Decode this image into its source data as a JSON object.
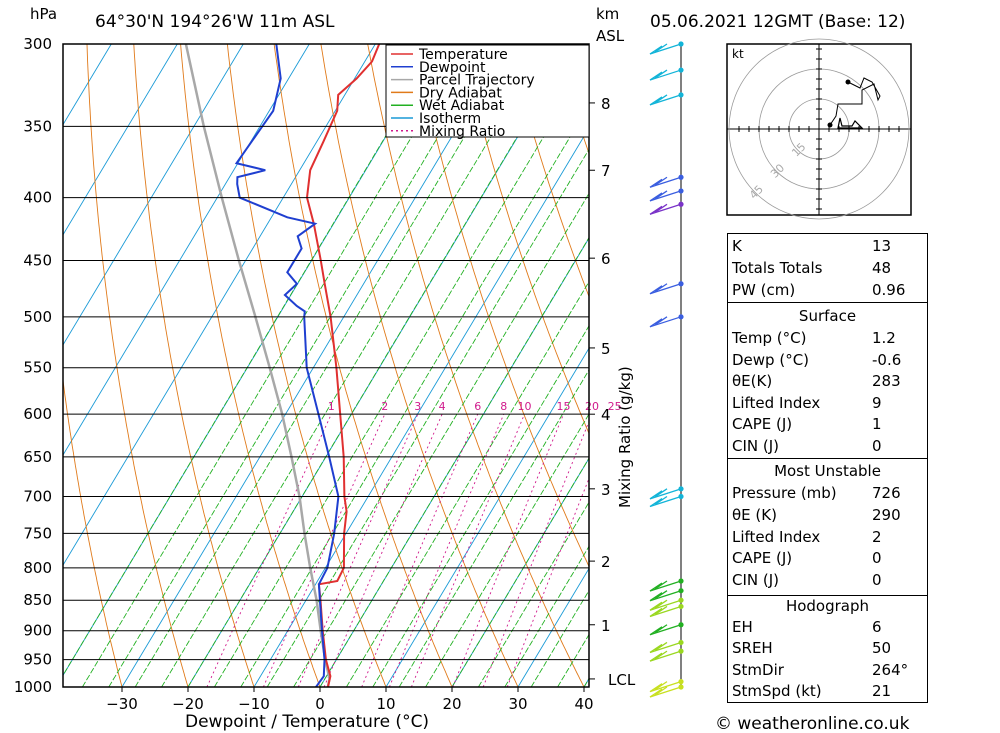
{
  "header": {
    "pressure_unit": "hPa",
    "location": "64°30'N 194°26'W 11m ASL",
    "km_unit": "km",
    "asl": "ASL",
    "datetime": "05.06.2021 12GMT (Base: 12)"
  },
  "footer": {
    "credit": "© weatheronline.co.uk"
  },
  "colors": {
    "temperature": "#e03030",
    "dewpoint": "#1f3fd0",
    "parcel": "#a8a8a8",
    "dry_adiabat": "#e07a1a",
    "wet_adiabat": "#22b022",
    "isotherm": "#1a9ad6",
    "mixing_ratio": "#d01a8c"
  },
  "chart_data": {
    "type": "line",
    "subtype": "skew-T log-P",
    "xlabel": "Dewpoint / Temperature (°C)",
    "ylabel_left": "hPa",
    "ylabel_right": "Mixing Ratio (g/kg)",
    "pressure_ticks": [
      300,
      350,
      400,
      450,
      500,
      550,
      600,
      650,
      700,
      750,
      800,
      850,
      900,
      950,
      1000
    ],
    "temperature_ticks": [
      -30,
      -20,
      -10,
      0,
      10,
      20,
      30,
      40
    ],
    "km_ticks": [
      {
        "label": "8",
        "p": 335
      },
      {
        "label": "7",
        "p": 380
      },
      {
        "label": "6",
        "p": 448
      },
      {
        "label": "5",
        "p": 530
      },
      {
        "label": "4",
        "p": 600
      },
      {
        "label": "3",
        "p": 690
      },
      {
        "label": "2",
        "p": 790
      },
      {
        "label": "1",
        "p": 890
      },
      {
        "label": "LCL",
        "p": 985
      }
    ],
    "mixing_ratio_labels": [
      "1",
      "2",
      "3",
      "4",
      "6",
      "8",
      "10",
      "15",
      "20",
      "25"
    ],
    "legend": [
      "Temperature",
      "Dewpoint",
      "Parcel Trajectory",
      "Dry Adiabat",
      "Wet Adiabat",
      "Isotherm",
      "Mixing Ratio"
    ],
    "legend_position": "top-right of plot",
    "series": [
      {
        "name": "Temperature",
        "points": [
          [
            1000,
            1.2
          ],
          [
            980,
            0.6
          ],
          [
            950,
            -1.6
          ],
          [
            900,
            -4.7
          ],
          [
            850,
            -7.8
          ],
          [
            825,
            -9.5
          ],
          [
            820,
            -7.0
          ],
          [
            800,
            -7.2
          ],
          [
            750,
            -10.3
          ],
          [
            720,
            -11.9
          ],
          [
            700,
            -13.6
          ],
          [
            650,
            -17.3
          ],
          [
            600,
            -21.7
          ],
          [
            550,
            -26.5
          ],
          [
            500,
            -32.0
          ],
          [
            470,
            -35.9
          ],
          [
            450,
            -38.6
          ],
          [
            420,
            -43.0
          ],
          [
            400,
            -46.4
          ],
          [
            380,
            -48.4
          ],
          [
            360,
            -49.0
          ],
          [
            340,
            -49.7
          ],
          [
            330,
            -51.0
          ],
          [
            320,
            -49.7
          ],
          [
            310,
            -48.9
          ],
          [
            300,
            -49.4
          ]
        ]
      },
      {
        "name": "Dewpoint",
        "points": [
          [
            1000,
            -0.6
          ],
          [
            980,
            -0.4
          ],
          [
            950,
            -1.8
          ],
          [
            900,
            -4.8
          ],
          [
            850,
            -7.9
          ],
          [
            825,
            -9.5
          ],
          [
            800,
            -9.7
          ],
          [
            750,
            -11.8
          ],
          [
            700,
            -14.5
          ],
          [
            650,
            -19.5
          ],
          [
            600,
            -25.0
          ],
          [
            550,
            -31.0
          ],
          [
            500,
            -36.0
          ],
          [
            495,
            -36.4
          ],
          [
            490,
            -38.1
          ],
          [
            480,
            -40.9
          ],
          [
            470,
            -40.1
          ],
          [
            460,
            -42.6
          ],
          [
            440,
            -42.6
          ],
          [
            430,
            -44.3
          ],
          [
            420,
            -42.8
          ],
          [
            415,
            -47.6
          ],
          [
            400,
            -56.6
          ],
          [
            390,
            -58.2
          ],
          [
            385,
            -58.8
          ],
          [
            380,
            -55.2
          ],
          [
            375,
            -60.2
          ],
          [
            340,
            -59.4
          ],
          [
            320,
            -61.2
          ],
          [
            300,
            -65.0
          ]
        ]
      },
      {
        "name": "Parcel Trajectory",
        "points": [
          [
            1000,
            1.2
          ],
          [
            985,
            0.7
          ],
          [
            950,
            -1.7
          ],
          [
            900,
            -5.0
          ],
          [
            850,
            -8.4
          ],
          [
            800,
            -12.3
          ],
          [
            750,
            -16.3
          ],
          [
            700,
            -20.4
          ],
          [
            650,
            -25.2
          ],
          [
            600,
            -30.5
          ],
          [
            550,
            -36.6
          ],
          [
            500,
            -43.4
          ],
          [
            450,
            -51.0
          ],
          [
            400,
            -59.3
          ],
          [
            350,
            -68.5
          ],
          [
            300,
            -78.7
          ]
        ]
      }
    ],
    "wind_barbs": [
      {
        "p": 300,
        "color": "#12b4d8"
      },
      {
        "p": 315,
        "color": "#12b4d8"
      },
      {
        "p": 330,
        "color": "#12b4d8"
      },
      {
        "p": 385,
        "color": "#3a5ee0"
      },
      {
        "p": 395,
        "color": "#3a5ee0"
      },
      {
        "p": 405,
        "color": "#7a33c8"
      },
      {
        "p": 470,
        "color": "#3a5ee0"
      },
      {
        "p": 500,
        "color": "#3a5ee0"
      },
      {
        "p": 690,
        "color": "#12b4d8"
      },
      {
        "p": 700,
        "color": "#12b4d8"
      },
      {
        "p": 820,
        "color": "#22b022"
      },
      {
        "p": 835,
        "color": "#22b022"
      },
      {
        "p": 850,
        "color": "#9ad820"
      },
      {
        "p": 860,
        "color": "#9ad820"
      },
      {
        "p": 890,
        "color": "#22b022"
      },
      {
        "p": 920,
        "color": "#9ad820"
      },
      {
        "p": 935,
        "color": "#9ad820"
      },
      {
        "p": 990,
        "color": "#c8e020"
      },
      {
        "p": 1000,
        "color": "#c8e020"
      }
    ],
    "hodograph": {
      "unit": "kt",
      "ring_labels": [
        "15",
        "30",
        "45"
      ]
    }
  },
  "indices": {
    "general": [
      {
        "label": "K",
        "value": "13"
      },
      {
        "label": "Totals Totals",
        "value": "48"
      },
      {
        "label": "PW (cm)",
        "value": "0.96"
      }
    ],
    "surface_title": "Surface",
    "surface": [
      {
        "label": "Temp (°C)",
        "value": "1.2"
      },
      {
        "label": "Dewp (°C)",
        "value": "-0.6"
      },
      {
        "label": "θE(K)",
        "value": "283"
      },
      {
        "label": "Lifted Index",
        "value": "9"
      },
      {
        "label": "CAPE (J)",
        "value": "1"
      },
      {
        "label": "CIN (J)",
        "value": "0"
      }
    ],
    "unstable_title": "Most Unstable",
    "unstable": [
      {
        "label": "Pressure (mb)",
        "value": "726"
      },
      {
        "label": "θE (K)",
        "value": "290"
      },
      {
        "label": "Lifted Index",
        "value": "2"
      },
      {
        "label": "CAPE (J)",
        "value": "0"
      },
      {
        "label": "CIN (J)",
        "value": "0"
      }
    ],
    "hodo_title": "Hodograph",
    "hodo": [
      {
        "label": "EH",
        "value": "6"
      },
      {
        "label": "SREH",
        "value": "50"
      },
      {
        "label": "StmDir",
        "value": "264°"
      },
      {
        "label": "StmSpd (kt)",
        "value": "21"
      }
    ]
  }
}
